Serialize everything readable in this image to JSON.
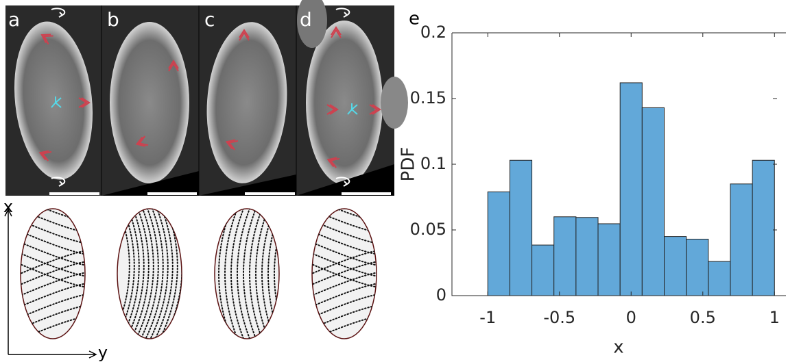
{
  "figure": {
    "panels": [
      {
        "label": "a"
      },
      {
        "label": "b"
      },
      {
        "label": "c"
      },
      {
        "label": "d"
      }
    ],
    "schematic": {
      "x_label": "x",
      "y_label": "y"
    }
  },
  "chart_data": {
    "type": "histogram",
    "panel_label": "e",
    "bins": [
      -1,
      -0.8462,
      -0.6923,
      -0.5385,
      -0.3846,
      -0.2308,
      -0.0769,
      0.0769,
      0.2308,
      0.3846,
      0.5385,
      0.6923,
      0.8462,
      1
    ],
    "values": [
      0.079,
      0.103,
      0.0385,
      0.06,
      0.0595,
      0.0547,
      0.162,
      0.143,
      0.045,
      0.043,
      0.026,
      0.085,
      0.103
    ],
    "color": "#62a8d9",
    "xlabel": "x",
    "ylabel": "PDF",
    "xlim": [
      -1.25,
      1.08
    ],
    "ylim": [
      0,
      0.2
    ],
    "xticks": [
      -1,
      -0.5,
      0,
      0.5,
      1
    ],
    "yticks": [
      0,
      0.05,
      0.1,
      0.15,
      0.2
    ]
  }
}
